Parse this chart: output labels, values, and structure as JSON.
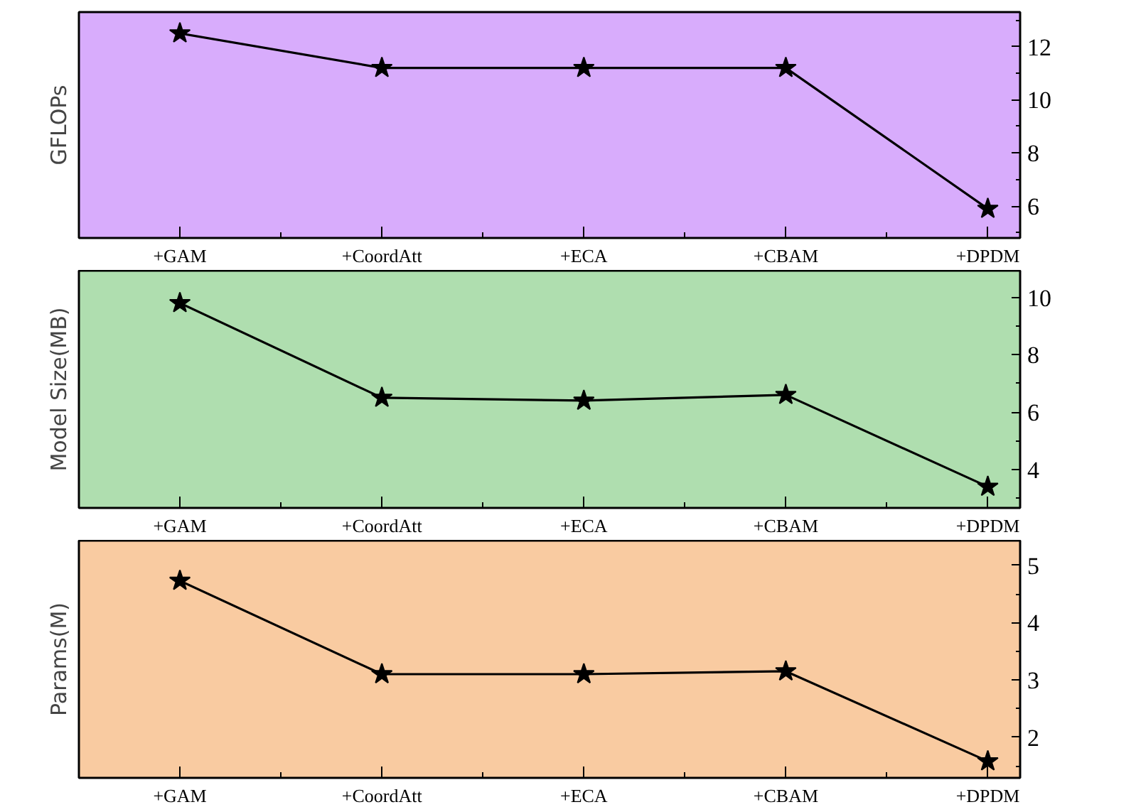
{
  "chart_data": [
    {
      "type": "line",
      "ylabel": "GFLOPs",
      "categories": [
        "+GAM",
        "+CoordAtt",
        "+ECA",
        "+CBAM",
        "+DPDM"
      ],
      "series": [
        {
          "color": "#000000",
          "values": [
            12.5,
            11.2,
            11.2,
            11.2,
            5.9
          ]
        }
      ],
      "ylim": [
        4.8,
        13.3
      ],
      "yticks": [
        6,
        8,
        10,
        12
      ],
      "marker": "star",
      "line_style": "solid"
    },
    {
      "type": "line",
      "ylabel": "Model Size(MB)",
      "categories": [
        "+GAM",
        "+CoordAtt",
        "+ECA",
        "+CBAM",
        "+DPDM"
      ],
      "series": [
        {
          "color": "#000000",
          "values": [
            9.8,
            6.5,
            6.4,
            6.6,
            3.4
          ]
        }
      ],
      "ylim": [
        2.66,
        10.93
      ],
      "yticks": [
        4,
        6,
        8,
        10
      ],
      "marker": "star",
      "line_style": "solid"
    },
    {
      "type": "line",
      "ylabel": "Params(M)",
      "categories": [
        "+GAM",
        "+CoordAtt",
        "+ECA",
        "+CBAM",
        "+DPDM"
      ],
      "series": [
        {
          "color": "#000000",
          "values": [
            4.73,
            3.1,
            3.1,
            3.15,
            1.58
          ]
        }
      ],
      "ylim": [
        1.29,
        5.43
      ],
      "yticks": [
        2,
        3,
        4,
        5
      ],
      "marker": "star",
      "line_style": "solid"
    }
  ]
}
